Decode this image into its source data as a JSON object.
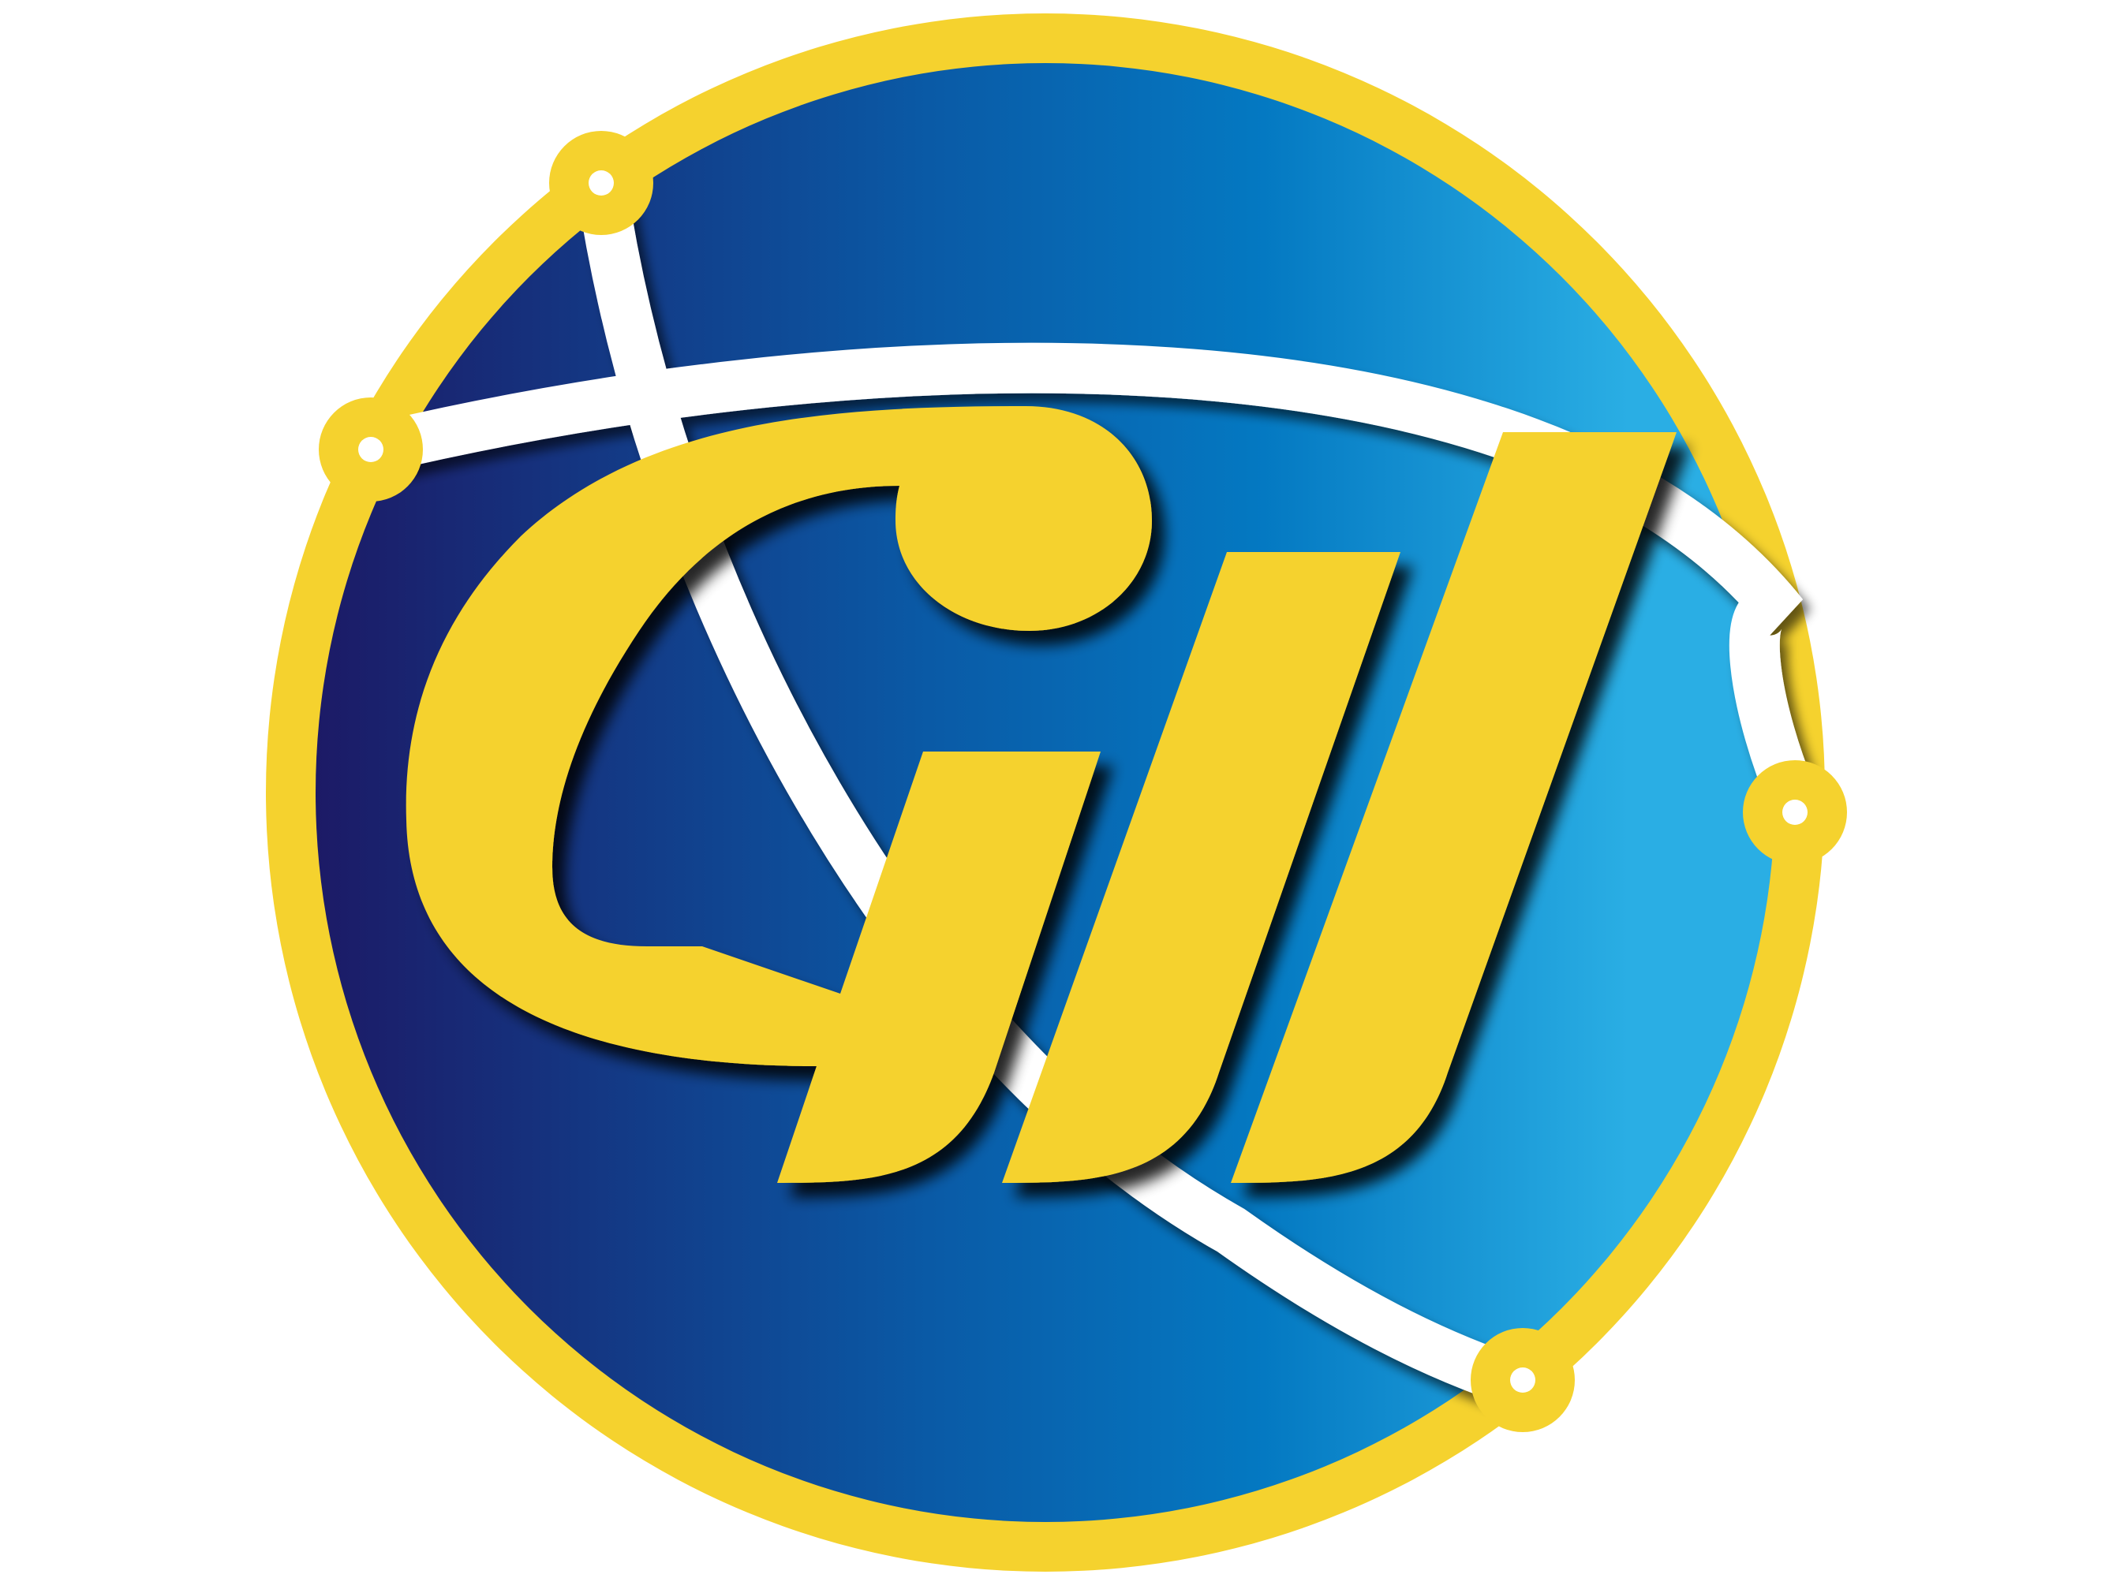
{
  "logo": {
    "wordmark": "GII",
    "colors": {
      "ring": "#F5D22E",
      "gradient_left": "#1C1A66",
      "gradient_mid": "#0A5AA6",
      "gradient_mid2": "#0479C2",
      "gradient_right": "#2AAEE4",
      "letters": "#F5D22E",
      "orbit": "#FFFFFF",
      "shadow": "#000000"
    },
    "icons": [
      "network-node-icon",
      "network-node-icon",
      "network-node-icon",
      "network-node-icon"
    ]
  }
}
